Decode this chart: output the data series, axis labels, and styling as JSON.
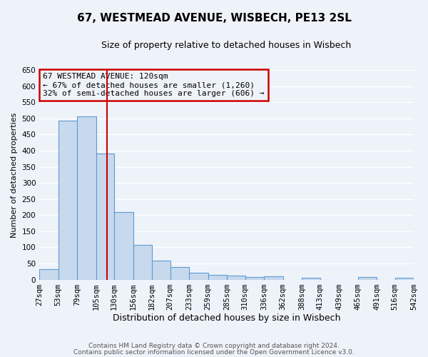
{
  "title": "67, WESTMEAD AVENUE, WISBECH, PE13 2SL",
  "subtitle": "Size of property relative to detached houses in Wisbech",
  "xlabel": "Distribution of detached houses by size in Wisbech",
  "ylabel": "Number of detached properties",
  "bin_edges": [
    27,
    53,
    79,
    105,
    130,
    156,
    182,
    207,
    233,
    259,
    285,
    310,
    336,
    362,
    388,
    413,
    439,
    465,
    491,
    516,
    542
  ],
  "bar_heights": [
    32,
    493,
    506,
    390,
    210,
    107,
    59,
    40,
    22,
    15,
    12,
    8,
    10,
    0,
    5,
    0,
    0,
    7,
    0,
    5
  ],
  "bar_color": "#c8d9ed",
  "bar_edge_color": "#5b9bd5",
  "vline_x": 120,
  "vline_color": "#cc0000",
  "ylim": [
    0,
    650
  ],
  "yticks": [
    0,
    50,
    100,
    150,
    200,
    250,
    300,
    350,
    400,
    450,
    500,
    550,
    600,
    650
  ],
  "annotation_title": "67 WESTMEAD AVENUE: 120sqm",
  "annotation_line1": "← 67% of detached houses are smaller (1,260)",
  "annotation_line2": "32% of semi-detached houses are larger (606) →",
  "annotation_box_color": "#cc0000",
  "footer_line1": "Contains HM Land Registry data © Crown copyright and database right 2024.",
  "footer_line2": "Contains public sector information licensed under the Open Government Licence v3.0.",
  "background_color": "#eef2f9",
  "grid_color": "#ffffff",
  "title_fontsize": 11,
  "subtitle_fontsize": 9,
  "xlabel_fontsize": 9,
  "ylabel_fontsize": 8,
  "tick_fontsize": 7.5,
  "annotation_fontsize": 8,
  "footer_fontsize": 6.5
}
